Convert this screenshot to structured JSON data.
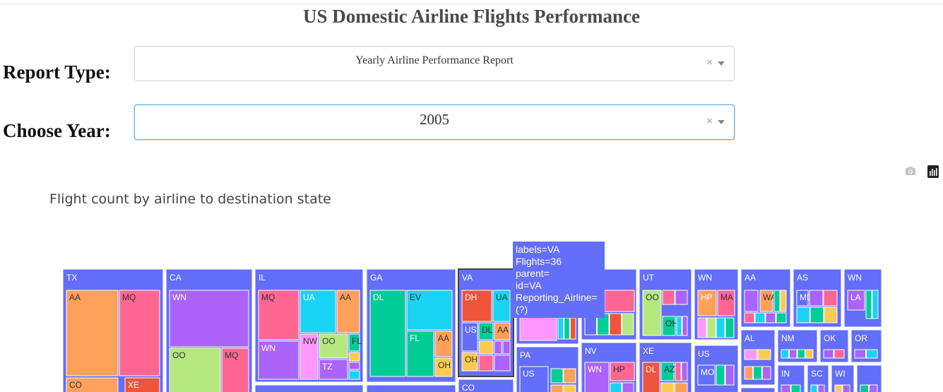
{
  "page": {
    "title": "US Domestic Airline Flights Performance"
  },
  "controls": {
    "report_type": {
      "label": "Report Type:",
      "value": "Yearly Airline Performance Report",
      "clear": "×"
    },
    "year": {
      "label": "Choose Year:",
      "value": "2005",
      "clear": "×"
    }
  },
  "toolbar": {
    "items": [
      "camera-icon",
      "plotly-logo-icon"
    ]
  },
  "chart": {
    "title": "Flight count by airline to destination state"
  },
  "tooltip": {
    "lines": [
      "labels=VA",
      "Flights=36",
      "parent=",
      "id=VA",
      "Reporting_Airline=(?)"
    ],
    "color": "#636efa"
  },
  "chart_data": {
    "type": "treemap",
    "title": "Flight count by airline to destination state",
    "hover": {
      "labels": "VA",
      "Flights": 36,
      "parent": "",
      "id": "VA",
      "Reporting_Airline": "(?)"
    },
    "visible_labels": [
      "TX",
      "AA",
      "MQ",
      "CO",
      "XE",
      "CA",
      "WN",
      "OO",
      "MQ",
      "IL",
      "MQ",
      "UA",
      "AA",
      "WN",
      "NW",
      "OO",
      "FL",
      "TZ",
      "GA",
      "DL",
      "EV",
      "FL",
      "AA",
      "OH",
      "VA",
      "DH",
      "UA",
      "US",
      "DL",
      "AA",
      "CO",
      "PA",
      "US",
      "NV",
      "WN",
      "HP",
      "UT",
      "OO",
      "OH",
      "XE",
      "DL",
      "AZ",
      "WN",
      "HP",
      "MA",
      "US",
      "MO",
      "AA",
      "WA",
      "AS",
      "MD",
      "WN",
      "LA",
      "AL",
      "NM",
      "OK",
      "OR",
      "IN",
      "SC",
      "WI"
    ]
  },
  "colors": {
    "state": "#636efa",
    "selected_border": "#444444"
  }
}
